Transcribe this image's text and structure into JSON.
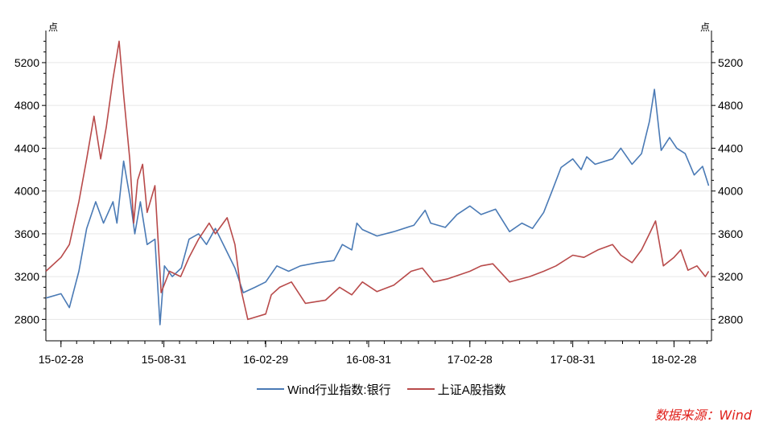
{
  "chart_data": {
    "type": "line",
    "title": "",
    "unit_left": "点",
    "unit_right": "点",
    "xlabel": "",
    "ylabel": "",
    "ylim": [
      2600,
      5500
    ],
    "y_ticks": [
      2800,
      3200,
      3600,
      4000,
      4400,
      4800,
      5200
    ],
    "x_ticks": [
      "15-02-28",
      "15-08-31",
      "16-02-29",
      "16-08-31",
      "17-02-28",
      "17-08-31",
      "18-02-28"
    ],
    "x_range": [
      "2015-02-01",
      "2018-05-06"
    ],
    "grid": "horizontal",
    "legend_position": "bottom",
    "series": [
      {
        "name": "Wind行业指数:银行",
        "color": "#4a7ab5",
        "points": [
          [
            "2015-02-01",
            3000
          ],
          [
            "2015-02-28",
            3040
          ],
          [
            "2015-03-15",
            2910
          ],
          [
            "2015-04-01",
            3250
          ],
          [
            "2015-04-15",
            3650
          ],
          [
            "2015-05-01",
            3900
          ],
          [
            "2015-05-15",
            3700
          ],
          [
            "2015-06-01",
            3900
          ],
          [
            "2015-06-08",
            3700
          ],
          [
            "2015-06-20",
            4280
          ],
          [
            "2015-07-01",
            3950
          ],
          [
            "2015-07-10",
            3600
          ],
          [
            "2015-07-20",
            3900
          ],
          [
            "2015-08-01",
            3500
          ],
          [
            "2015-08-15",
            3550
          ],
          [
            "2015-08-24",
            2750
          ],
          [
            "2015-09-01",
            3300
          ],
          [
            "2015-09-15",
            3200
          ],
          [
            "2015-10-01",
            3280
          ],
          [
            "2015-10-15",
            3550
          ],
          [
            "2015-11-01",
            3600
          ],
          [
            "2015-11-15",
            3500
          ],
          [
            "2015-12-01",
            3650
          ],
          [
            "2015-12-20",
            3450
          ],
          [
            "2016-01-05",
            3280
          ],
          [
            "2016-01-20",
            3050
          ],
          [
            "2016-02-10",
            3100
          ],
          [
            "2016-02-29",
            3150
          ],
          [
            "2016-03-20",
            3300
          ],
          [
            "2016-04-10",
            3250
          ],
          [
            "2016-05-01",
            3300
          ],
          [
            "2016-06-01",
            3330
          ],
          [
            "2016-06-30",
            3350
          ],
          [
            "2016-07-15",
            3500
          ],
          [
            "2016-08-01",
            3450
          ],
          [
            "2016-08-10",
            3700
          ],
          [
            "2016-08-20",
            3640
          ],
          [
            "2016-09-15",
            3580
          ],
          [
            "2016-10-15",
            3620
          ],
          [
            "2016-11-20",
            3680
          ],
          [
            "2016-12-10",
            3820
          ],
          [
            "2016-12-20",
            3700
          ],
          [
            "2017-01-15",
            3660
          ],
          [
            "2017-02-05",
            3780
          ],
          [
            "2017-02-28",
            3860
          ],
          [
            "2017-03-20",
            3780
          ],
          [
            "2017-04-15",
            3830
          ],
          [
            "2017-05-10",
            3620
          ],
          [
            "2017-06-01",
            3700
          ],
          [
            "2017-06-20",
            3650
          ],
          [
            "2017-07-10",
            3800
          ],
          [
            "2017-07-25",
            4000
          ],
          [
            "2017-08-10",
            4220
          ],
          [
            "2017-08-31",
            4300
          ],
          [
            "2017-09-15",
            4200
          ],
          [
            "2017-09-25",
            4320
          ],
          [
            "2017-10-10",
            4250
          ],
          [
            "2017-11-10",
            4300
          ],
          [
            "2017-11-25",
            4400
          ],
          [
            "2017-12-15",
            4250
          ],
          [
            "2018-01-01",
            4350
          ],
          [
            "2018-01-15",
            4650
          ],
          [
            "2018-01-24",
            4950
          ],
          [
            "2018-02-05",
            4380
          ],
          [
            "2018-02-20",
            4500
          ],
          [
            "2018-03-05",
            4400
          ],
          [
            "2018-03-20",
            4350
          ],
          [
            "2018-04-05",
            4150
          ],
          [
            "2018-04-20",
            4230
          ],
          [
            "2018-05-01",
            4050
          ]
        ]
      },
      {
        "name": "上证A股指数",
        "color": "#b84a4a",
        "points": [
          [
            "2015-02-01",
            3250
          ],
          [
            "2015-02-28",
            3380
          ],
          [
            "2015-03-15",
            3500
          ],
          [
            "2015-04-01",
            3900
          ],
          [
            "2015-04-15",
            4300
          ],
          [
            "2015-04-28",
            4700
          ],
          [
            "2015-05-10",
            4300
          ],
          [
            "2015-05-20",
            4600
          ],
          [
            "2015-06-01",
            5050
          ],
          [
            "2015-06-12",
            5400
          ],
          [
            "2015-06-20",
            4900
          ],
          [
            "2015-07-01",
            4300
          ],
          [
            "2015-07-08",
            3700
          ],
          [
            "2015-07-15",
            4100
          ],
          [
            "2015-07-24",
            4250
          ],
          [
            "2015-08-01",
            3800
          ],
          [
            "2015-08-15",
            4050
          ],
          [
            "2015-08-26",
            3050
          ],
          [
            "2015-09-10",
            3250
          ],
          [
            "2015-09-30",
            3200
          ],
          [
            "2015-10-15",
            3380
          ],
          [
            "2015-11-01",
            3550
          ],
          [
            "2015-11-20",
            3700
          ],
          [
            "2015-12-01",
            3600
          ],
          [
            "2015-12-22",
            3750
          ],
          [
            "2016-01-05",
            3500
          ],
          [
            "2016-01-15",
            3100
          ],
          [
            "2016-01-28",
            2800
          ],
          [
            "2016-02-29",
            2850
          ],
          [
            "2016-03-10",
            3030
          ],
          [
            "2016-03-25",
            3100
          ],
          [
            "2016-04-15",
            3150
          ],
          [
            "2016-05-10",
            2950
          ],
          [
            "2016-06-15",
            2980
          ],
          [
            "2016-07-10",
            3100
          ],
          [
            "2016-08-01",
            3030
          ],
          [
            "2016-08-20",
            3150
          ],
          [
            "2016-09-15",
            3060
          ],
          [
            "2016-10-15",
            3120
          ],
          [
            "2016-11-15",
            3250
          ],
          [
            "2016-12-05",
            3280
          ],
          [
            "2016-12-25",
            3150
          ],
          [
            "2017-01-20",
            3180
          ],
          [
            "2017-02-28",
            3250
          ],
          [
            "2017-03-20",
            3300
          ],
          [
            "2017-04-10",
            3320
          ],
          [
            "2017-05-10",
            3150
          ],
          [
            "2017-06-15",
            3200
          ],
          [
            "2017-07-10",
            3250
          ],
          [
            "2017-08-01",
            3300
          ],
          [
            "2017-08-31",
            3400
          ],
          [
            "2017-09-20",
            3380
          ],
          [
            "2017-10-15",
            3450
          ],
          [
            "2017-11-10",
            3500
          ],
          [
            "2017-11-25",
            3400
          ],
          [
            "2017-12-15",
            3330
          ],
          [
            "2018-01-01",
            3450
          ],
          [
            "2018-01-15",
            3600
          ],
          [
            "2018-01-26",
            3720
          ],
          [
            "2018-02-09",
            3300
          ],
          [
            "2018-02-28",
            3380
          ],
          [
            "2018-03-12",
            3450
          ],
          [
            "2018-03-25",
            3260
          ],
          [
            "2018-04-10",
            3300
          ],
          [
            "2018-04-25",
            3200
          ],
          [
            "2018-05-01",
            3250
          ]
        ]
      }
    ]
  },
  "source_note": "数据来源：Wind"
}
